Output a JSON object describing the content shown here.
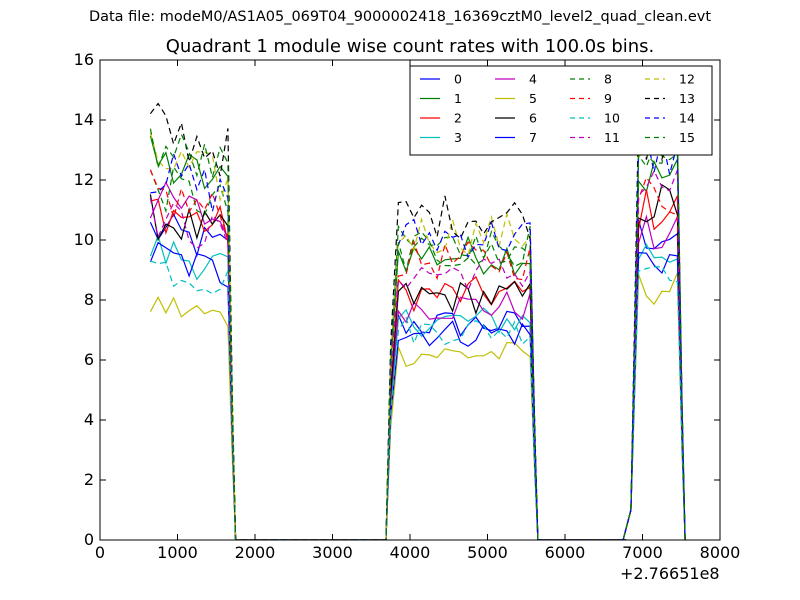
{
  "suptitle": "Data file: modeM0/AS1A05_069T04_9000002418_16369cztM0_level2_quad_clean.evt",
  "chart_data": {
    "type": "line",
    "title": "Quadrant 1 module wise count rates with 100.0s bins.",
    "xlabel": "",
    "ylabel": "",
    "x_offset_label": "+2.76651e8",
    "xlim": [
      0,
      8000
    ],
    "ylim": [
      0,
      16
    ],
    "xticks": [
      0,
      1000,
      2000,
      3000,
      4000,
      5000,
      6000,
      7000,
      8000
    ],
    "yticks": [
      0,
      2,
      4,
      6,
      8,
      10,
      12,
      14,
      16
    ],
    "grid": false,
    "legend_position": "top-right",
    "legend_columns": 4,
    "segments": [
      [
        650,
        1750
      ],
      [
        3750,
        5650
      ],
      [
        6850,
        7550
      ]
    ],
    "series": [
      {
        "name": "0",
        "color": "#0000ff",
        "dash": "solid",
        "levels": [
          9.6,
          7.2,
          10.2
        ]
      },
      {
        "name": "1",
        "color": "#008000",
        "dash": "solid",
        "levels": [
          11.7,
          9.5,
          12.1
        ]
      },
      {
        "name": "2",
        "color": "#ff0000",
        "dash": "solid",
        "levels": [
          10.3,
          8.2,
          11.0
        ]
      },
      {
        "name": "3",
        "color": "#00bfbf",
        "dash": "solid",
        "levels": [
          9.0,
          7.3,
          9.6
        ]
      },
      {
        "name": "4",
        "color": "#bf00bf",
        "dash": "solid",
        "levels": [
          10.5,
          7.8,
          10.1
        ]
      },
      {
        "name": "5",
        "color": "#bfbf00",
        "dash": "solid",
        "levels": [
          7.3,
          6.2,
          8.4
        ]
      },
      {
        "name": "6",
        "color": "#000000",
        "dash": "solid",
        "levels": [
          10.0,
          8.1,
          11.2
        ]
      },
      {
        "name": "7",
        "color": "#0000ff",
        "dash": "solid",
        "levels": [
          8.8,
          6.9,
          9.4
        ]
      },
      {
        "name": "8",
        "color": "#008000",
        "dash": "dashed",
        "levels": [
          11.0,
          9.8,
          12.3
        ]
      },
      {
        "name": "9",
        "color": "#ff0000",
        "dash": "dashed",
        "levels": [
          10.7,
          9.3,
          11.5
        ]
      },
      {
        "name": "10",
        "color": "#00bfbf",
        "dash": "dashed",
        "levels": [
          8.5,
          7.0,
          9.2
        ]
      },
      {
        "name": "11",
        "color": "#bf00bf",
        "dash": "dashed",
        "levels": [
          10.0,
          8.9,
          11.8
        ]
      },
      {
        "name": "12",
        "color": "#bfbf00",
        "dash": "dashed",
        "levels": [
          11.8,
          10.2,
          13.3
        ]
      },
      {
        "name": "13",
        "color": "#000000",
        "dash": "dashed",
        "levels": [
          12.8,
          10.8,
          13.6
        ]
      },
      {
        "name": "14",
        "color": "#0000ff",
        "dash": "dashed",
        "levels": [
          11.4,
          10.1,
          12.9
        ]
      },
      {
        "name": "15",
        "color": "#008000",
        "dash": "dashed",
        "levels": [
          12.2,
          9.6,
          13.0
        ]
      }
    ]
  }
}
